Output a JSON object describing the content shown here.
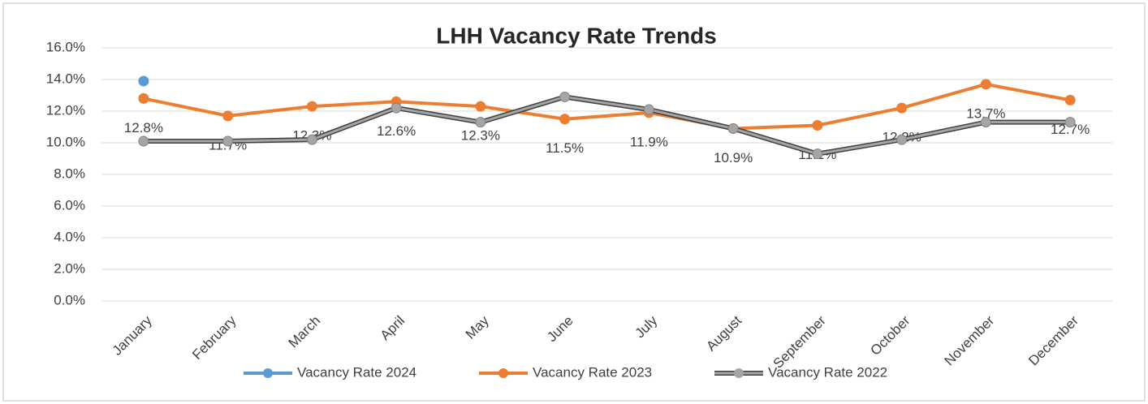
{
  "chart_data": {
    "type": "line",
    "title": "LHH Vacancy Rate Trends",
    "categories": [
      "January",
      "February",
      "March",
      "April",
      "May",
      "June",
      "July",
      "August",
      "September",
      "October",
      "November",
      "December"
    ],
    "series": [
      {
        "name": "Vacancy Rate 2024",
        "color": "#5b9bd5",
        "values": [
          13.9,
          null,
          null,
          null,
          null,
          null,
          null,
          null,
          null,
          null,
          null,
          null
        ]
      },
      {
        "name": "Vacancy Rate 2023",
        "color": "#ed7d31",
        "values": [
          12.8,
          11.7,
          12.3,
          12.6,
          12.3,
          11.5,
          11.9,
          10.9,
          11.1,
          12.2,
          13.7,
          12.7
        ],
        "value_labels": [
          "12.8%",
          "11.7%",
          "12.3%",
          "12.6%",
          "12.3%",
          "11.5%",
          "11.9%",
          "10.9%",
          "11.1%",
          "12.2%",
          "13.7%",
          "12.7%"
        ]
      },
      {
        "name": "Vacancy Rate 2022",
        "color": "#a5a5a5",
        "values": [
          10.1,
          10.1,
          10.2,
          12.2,
          11.3,
          12.9,
          12.1,
          10.9,
          9.3,
          10.2,
          11.3,
          11.3
        ]
      }
    ],
    "ylim": [
      0,
      16
    ],
    "yticks": [
      {
        "value": 0,
        "label": "0.0%"
      },
      {
        "value": 2,
        "label": "2.0%"
      },
      {
        "value": 4,
        "label": "4.0%"
      },
      {
        "value": 6,
        "label": "6.0%"
      },
      {
        "value": 8,
        "label": "8.0%"
      },
      {
        "value": 10,
        "label": "10.0%"
      },
      {
        "value": 12,
        "label": "12.0%"
      },
      {
        "value": 14,
        "label": "14.0%"
      },
      {
        "value": 16,
        "label": "16.0%"
      }
    ],
    "grid": true,
    "legend": "bottom"
  }
}
